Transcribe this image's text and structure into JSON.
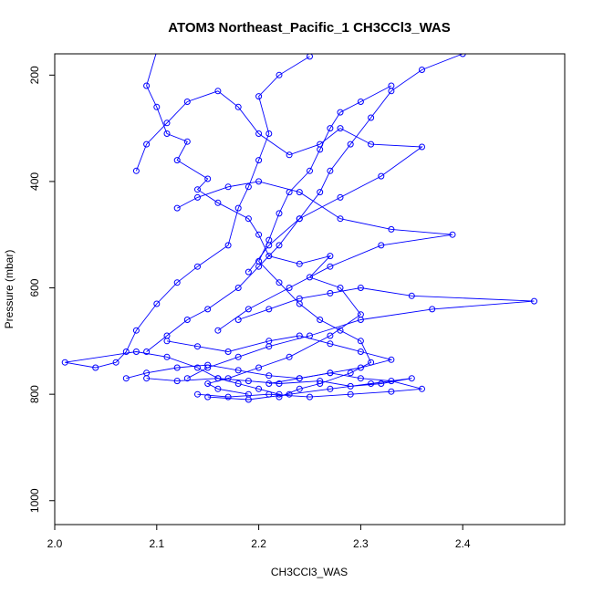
{
  "chart_data": {
    "type": "line",
    "title": "ATOM3 Northeast_Pacific_1 CH3CCl3_WAS",
    "xlabel": "CH3CCl3_WAS",
    "ylabel": "Pressure (mbar)",
    "xlim": [
      2.0,
      2.5
    ],
    "ylim": [
      1045,
      160
    ],
    "y_reversed": true,
    "grid": false,
    "color": "#0000ff",
    "marker": "open-circle",
    "x_ticks": [
      2.0,
      2.1,
      2.2,
      2.3,
      2.4
    ],
    "x_tick_labels": [
      "2.0",
      "2.1",
      "2.2",
      "2.3",
      "2.4"
    ],
    "y_ticks": [
      200,
      400,
      600,
      800,
      1000
    ],
    "y_tick_labels": [
      "200",
      "400",
      "600",
      "800",
      "1000"
    ],
    "series": [
      {
        "x": [
          2.1,
          2.09,
          2.1,
          2.11,
          2.13,
          2.12,
          2.15,
          2.14,
          2.16,
          2.19,
          2.2,
          2.21,
          2.24,
          2.27,
          2.25,
          2.28,
          2.3,
          2.27,
          2.23,
          2.2,
          2.17,
          2.15,
          2.16,
          2.19
        ],
        "y": [
          155,
          220,
          260,
          310,
          325,
          360,
          395,
          415,
          440,
          470,
          500,
          540,
          555,
          540,
          580,
          600,
          650,
          690,
          730,
          750,
          770,
          780,
          790,
          800
        ]
      },
      {
        "x": [
          2.25,
          2.22,
          2.2,
          2.21,
          2.2,
          2.19,
          2.18,
          2.17,
          2.14,
          2.12,
          2.1,
          2.08,
          2.07,
          2.06,
          2.04,
          2.01,
          2.08,
          2.11,
          2.14,
          2.16,
          2.18,
          2.2,
          2.22
        ],
        "y": [
          165,
          200,
          240,
          310,
          360,
          410,
          450,
          520,
          560,
          590,
          630,
          680,
          720,
          740,
          750,
          740,
          720,
          730,
          750,
          770,
          780,
          790,
          800
        ]
      },
      {
        "x": [
          2.33,
          2.3,
          2.28,
          2.27,
          2.26,
          2.25,
          2.23,
          2.22,
          2.21,
          2.2,
          2.22,
          2.24,
          2.26,
          2.28,
          2.3,
          2.31,
          2.29,
          2.26,
          2.24,
          2.22
        ],
        "y": [
          220,
          250,
          270,
          300,
          340,
          380,
          420,
          460,
          510,
          550,
          590,
          630,
          660,
          680,
          700,
          740,
          760,
          780,
          790,
          805
        ]
      },
      {
        "x": [
          2.08,
          2.09,
          2.11,
          2.13,
          2.16,
          2.18,
          2.2,
          2.23,
          2.26,
          2.28,
          2.31,
          2.36,
          2.32,
          2.28,
          2.24,
          2.21,
          2.19
        ],
        "y": [
          380,
          330,
          290,
          250,
          230,
          260,
          310,
          350,
          330,
          300,
          330,
          335,
          390,
          430,
          470,
          520,
          570
        ]
      },
      {
        "x": [
          2.4,
          2.36,
          2.33,
          2.31,
          2.29,
          2.27,
          2.26,
          2.24,
          2.22,
          2.2,
          2.18,
          2.15,
          2.13,
          2.11,
          2.09
        ],
        "y": [
          160,
          190,
          230,
          280,
          330,
          380,
          420,
          470,
          520,
          560,
          600,
          640,
          660,
          690,
          720
        ]
      },
      {
        "x": [
          2.12,
          2.14,
          2.17,
          2.2,
          2.24,
          2.28,
          2.33,
          2.39,
          2.32,
          2.27,
          2.23,
          2.19,
          2.16
        ],
        "y": [
          450,
          430,
          410,
          400,
          420,
          470,
          490,
          500,
          520,
          560,
          600,
          640,
          680
        ]
      },
      {
        "x": [
          2.18,
          2.21,
          2.24,
          2.27,
          2.3,
          2.35,
          2.47,
          2.37,
          2.3,
          2.25,
          2.21,
          2.18,
          2.15,
          2.13
        ],
        "y": [
          660,
          640,
          620,
          610,
          600,
          615,
          625,
          640,
          660,
          690,
          710,
          730,
          750,
          770
        ]
      },
      {
        "x": [
          2.07,
          2.09,
          2.12,
          2.15,
          2.18,
          2.21,
          2.24,
          2.27,
          2.3,
          2.33,
          2.36,
          2.33,
          2.29,
          2.25,
          2.21,
          2.17,
          2.14
        ],
        "y": [
          770,
          760,
          750,
          745,
          755,
          765,
          770,
          760,
          770,
          775,
          790,
          795,
          800,
          805,
          800,
          805,
          800
        ]
      },
      {
        "x": [
          2.09,
          2.12,
          2.16,
          2.19,
          2.22,
          2.26,
          2.29,
          2.32,
          2.35,
          2.31,
          2.27,
          2.23,
          2.19,
          2.15
        ],
        "y": [
          770,
          775,
          770,
          775,
          780,
          775,
          785,
          780,
          770,
          780,
          790,
          800,
          810,
          805
        ]
      },
      {
        "x": [
          2.11,
          2.14,
          2.17,
          2.21,
          2.24,
          2.27,
          2.3,
          2.33,
          2.3,
          2.27,
          2.24,
          2.21
        ],
        "y": [
          700,
          710,
          720,
          700,
          690,
          705,
          720,
          735,
          750,
          760,
          770,
          780
        ]
      }
    ]
  }
}
